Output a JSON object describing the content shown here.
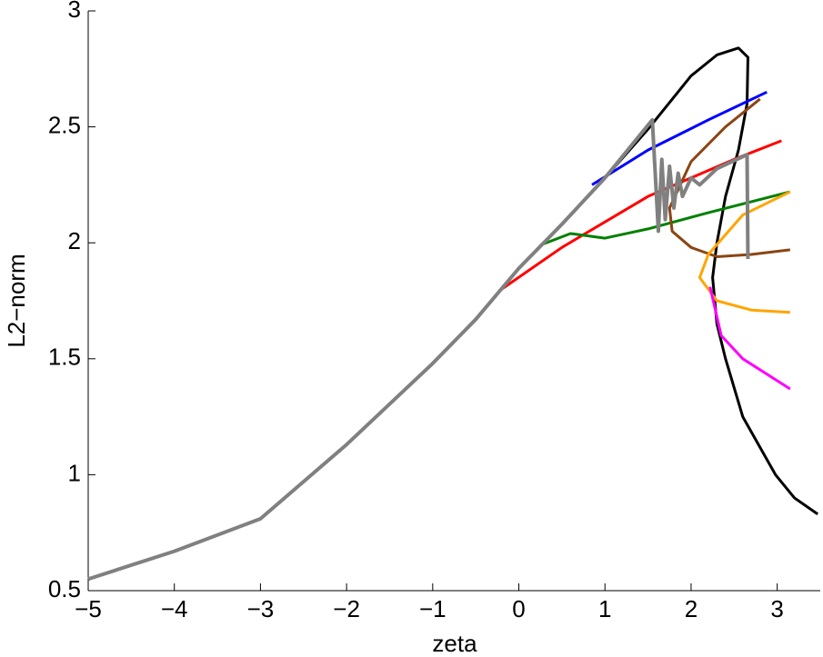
{
  "chart_data": {
    "type": "line",
    "xlabel": "zeta",
    "ylabel": "L2−norm",
    "xlim": [
      -5,
      3.5
    ],
    "ylim": [
      0.5,
      3
    ],
    "xticks": [
      {
        "value": -5,
        "label": "−5"
      },
      {
        "value": -4,
        "label": "−4"
      },
      {
        "value": -3,
        "label": "−3"
      },
      {
        "value": -2,
        "label": "−2"
      },
      {
        "value": -1,
        "label": "−1"
      },
      0,
      1,
      2,
      3
    ],
    "yticks": [
      0.5,
      1,
      1.5,
      2,
      2.5,
      3
    ],
    "grid": false,
    "series": [
      {
        "color": "#000000",
        "x": [
          -5,
          -4,
          -3,
          -2,
          -1,
          -0.5,
          0,
          0.5,
          1,
          1.5,
          2,
          2.3,
          2.55,
          2.66,
          2.65,
          2.55,
          2.4,
          2.3,
          2.25,
          2.3,
          2.4,
          2.6,
          2.98,
          3.2,
          3.47
        ],
        "values": [
          0.55,
          0.67,
          0.81,
          1.13,
          1.48,
          1.67,
          1.89,
          2.08,
          2.28,
          2.49,
          2.72,
          2.81,
          2.84,
          2.8,
          2.6,
          2.4,
          2.2,
          2.0,
          1.85,
          1.65,
          1.5,
          1.25,
          1.0,
          0.9,
          0.83
        ]
      },
      {
        "color": "#0000ff",
        "x": [
          0.85,
          1.5,
          2.2,
          2.88
        ],
        "values": [
          2.25,
          2.4,
          2.53,
          2.65
        ]
      },
      {
        "color": "#ff0000",
        "x": [
          -0.2,
          0.5,
          1.5,
          2.5,
          3.05
        ],
        "values": [
          1.8,
          1.98,
          2.2,
          2.36,
          2.44
        ]
      },
      {
        "color": "#008000",
        "x": [
          0.25,
          0.6,
          1.0,
          1.5,
          2.2,
          3.15
        ],
        "values": [
          1.99,
          2.04,
          2.02,
          2.06,
          2.13,
          2.22
        ]
      },
      {
        "color": "#8b4513",
        "x": [
          2.8,
          2.4,
          2.0,
          1.75,
          1.78,
          2.0,
          2.3,
          2.7,
          3.15
        ],
        "values": [
          2.62,
          2.5,
          2.35,
          2.15,
          2.05,
          1.98,
          1.94,
          1.95,
          1.97
        ]
      },
      {
        "color": "#ffa500",
        "x": [
          3.15,
          2.6,
          2.2,
          2.1,
          2.3,
          2.7,
          3.15
        ],
        "values": [
          2.22,
          2.12,
          1.95,
          1.85,
          1.75,
          1.71,
          1.7
        ]
      },
      {
        "color": "#ff00ff",
        "x": [
          2.22,
          2.35,
          2.6,
          3.15
        ],
        "values": [
          1.81,
          1.6,
          1.5,
          1.37
        ]
      },
      {
        "color": "#808080",
        "x": [
          -5,
          -4,
          -3,
          -2,
          -1,
          -0.5,
          0,
          0.5,
          1,
          1.55,
          1.62,
          1.66,
          1.7,
          1.75,
          1.8,
          1.85,
          1.9,
          2.0,
          2.1,
          2.3,
          2.65,
          2.66
        ],
        "values": [
          0.55,
          0.67,
          0.81,
          1.13,
          1.48,
          1.67,
          1.89,
          2.08,
          2.28,
          2.53,
          2.05,
          2.36,
          2.1,
          2.33,
          2.15,
          2.3,
          2.2,
          2.28,
          2.25,
          2.32,
          2.38,
          1.93
        ]
      }
    ]
  }
}
